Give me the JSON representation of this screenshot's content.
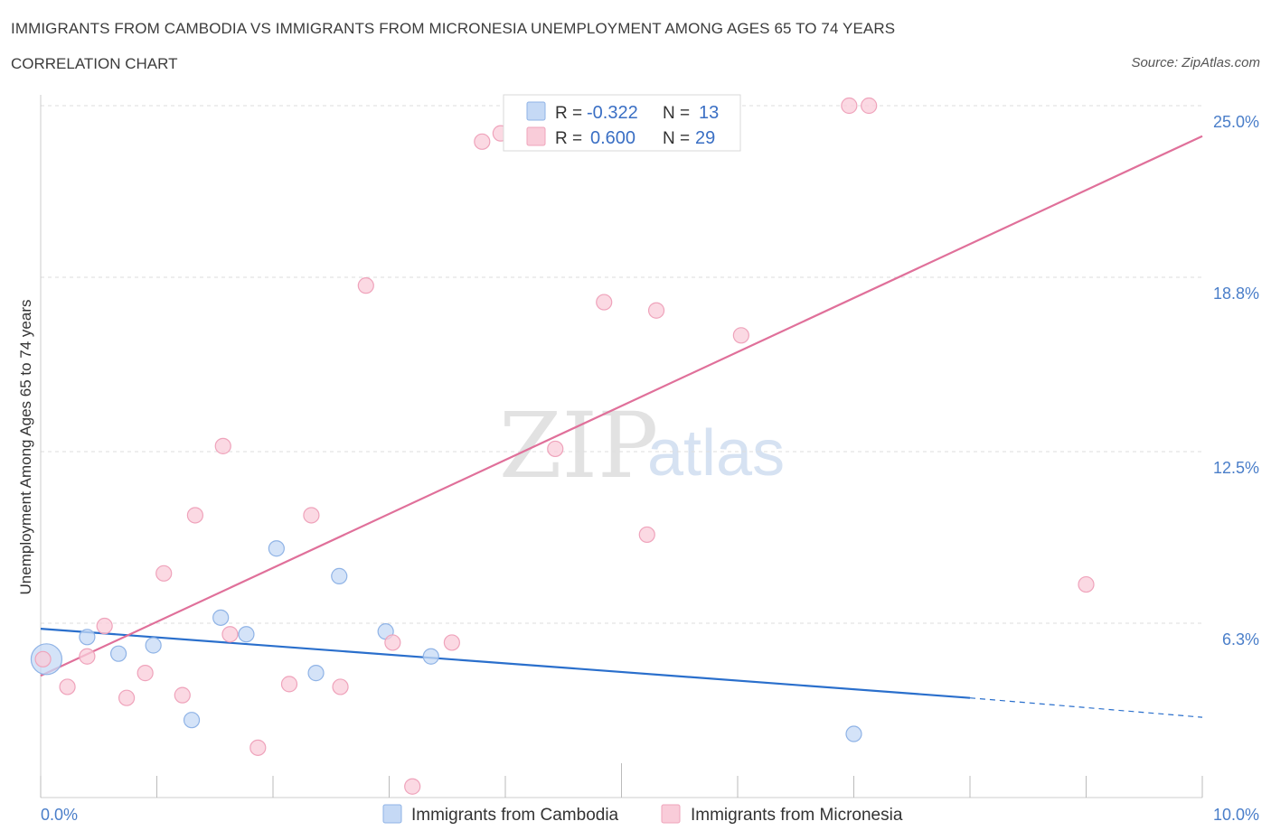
{
  "title": "IMMIGRANTS FROM CAMBODIA VS IMMIGRANTS FROM MICRONESIA UNEMPLOYMENT AMONG AGES 65 TO 74 YEARS",
  "subtitle": "CORRELATION CHART",
  "source": "Source: ZipAtlas.com",
  "watermark": {
    "zip": "ZIP",
    "atlas": "atlas"
  },
  "colors": {
    "cambodia_fill": "#c5d9f5",
    "cambodia_stroke": "#8fb3e6",
    "cambodia_line": "#2a6fcc",
    "micronesia_fill": "#f9ccd9",
    "micronesia_stroke": "#efa3bb",
    "micronesia_line": "#e0709a",
    "axis_text": "#4a7ec9",
    "grid": "#dddddd"
  },
  "legend": {
    "rows": [
      {
        "r_label": "R =",
        "r_value": "-0.322",
        "n_label": "N =",
        "n_value": "13"
      },
      {
        "r_label": "R =",
        "r_value": "0.600",
        "n_label": "N =",
        "n_value": "29"
      }
    ]
  },
  "bottom_legend": [
    "Immigrants from Cambodia",
    "Immigrants from Micronesia"
  ],
  "chart_data": {
    "type": "scatter",
    "title": "IMMIGRANTS FROM CAMBODIA VS IMMIGRANTS FROM MICRONESIA UNEMPLOYMENT AMONG AGES 65 TO 74 YEARS",
    "xlabel": "",
    "ylabel": "Unemployment Among Ages 65 to 74 years",
    "xlim": [
      0,
      10
    ],
    "ylim": [
      0,
      25
    ],
    "x_tick_labels": [
      "0.0%",
      "10.0%"
    ],
    "y_ticks": [
      6.3,
      12.5,
      18.8,
      25.0
    ],
    "y_tick_labels": [
      "6.3%",
      "12.5%",
      "18.8%",
      "25.0%"
    ],
    "series": [
      {
        "name": "Immigrants from Cambodia",
        "points": [
          {
            "x": 0.05,
            "y": 5.0,
            "big": true
          },
          {
            "x": 0.4,
            "y": 5.8
          },
          {
            "x": 0.67,
            "y": 5.2
          },
          {
            "x": 0.97,
            "y": 5.5
          },
          {
            "x": 1.3,
            "y": 2.8
          },
          {
            "x": 1.55,
            "y": 6.5
          },
          {
            "x": 1.77,
            "y": 5.9
          },
          {
            "x": 2.03,
            "y": 9.0
          },
          {
            "x": 2.37,
            "y": 4.5
          },
          {
            "x": 2.57,
            "y": 8.0
          },
          {
            "x": 2.97,
            "y": 6.0
          },
          {
            "x": 3.36,
            "y": 5.1
          },
          {
            "x": 7.0,
            "y": 2.3
          }
        ],
        "trend": {
          "x0": 0.0,
          "y0": 6.1,
          "x1": 8.0,
          "y1": 3.6,
          "dashed_to_x": 10.0,
          "dashed_to_y": 2.9
        }
      },
      {
        "name": "Immigrants from Micronesia",
        "points": [
          {
            "x": 0.02,
            "y": 5.0
          },
          {
            "x": 0.23,
            "y": 4.0
          },
          {
            "x": 0.4,
            "y": 5.1
          },
          {
            "x": 0.55,
            "y": 6.2
          },
          {
            "x": 0.74,
            "y": 3.6
          },
          {
            "x": 0.9,
            "y": 4.5
          },
          {
            "x": 1.06,
            "y": 8.1
          },
          {
            "x": 1.22,
            "y": 3.7
          },
          {
            "x": 1.33,
            "y": 10.2
          },
          {
            "x": 1.57,
            "y": 12.7
          },
          {
            "x": 1.63,
            "y": 5.9
          },
          {
            "x": 1.87,
            "y": 1.8
          },
          {
            "x": 2.14,
            "y": 4.1
          },
          {
            "x": 2.33,
            "y": 10.2
          },
          {
            "x": 2.58,
            "y": 4.0
          },
          {
            "x": 2.8,
            "y": 18.5
          },
          {
            "x": 3.03,
            "y": 5.6
          },
          {
            "x": 3.2,
            "y": 0.4
          },
          {
            "x": 3.54,
            "y": 5.6
          },
          {
            "x": 3.8,
            "y": 23.7
          },
          {
            "x": 3.96,
            "y": 24.0
          },
          {
            "x": 4.43,
            "y": 12.6
          },
          {
            "x": 4.85,
            "y": 17.9
          },
          {
            "x": 5.22,
            "y": 9.5
          },
          {
            "x": 5.3,
            "y": 17.6
          },
          {
            "x": 6.03,
            "y": 16.7
          },
          {
            "x": 6.96,
            "y": 25.0
          },
          {
            "x": 7.13,
            "y": 25.0
          },
          {
            "x": 9.0,
            "y": 7.7
          }
        ],
        "trend": {
          "x0": 0.0,
          "y0": 4.4,
          "x1": 10.0,
          "y1": 23.9
        }
      }
    ]
  }
}
